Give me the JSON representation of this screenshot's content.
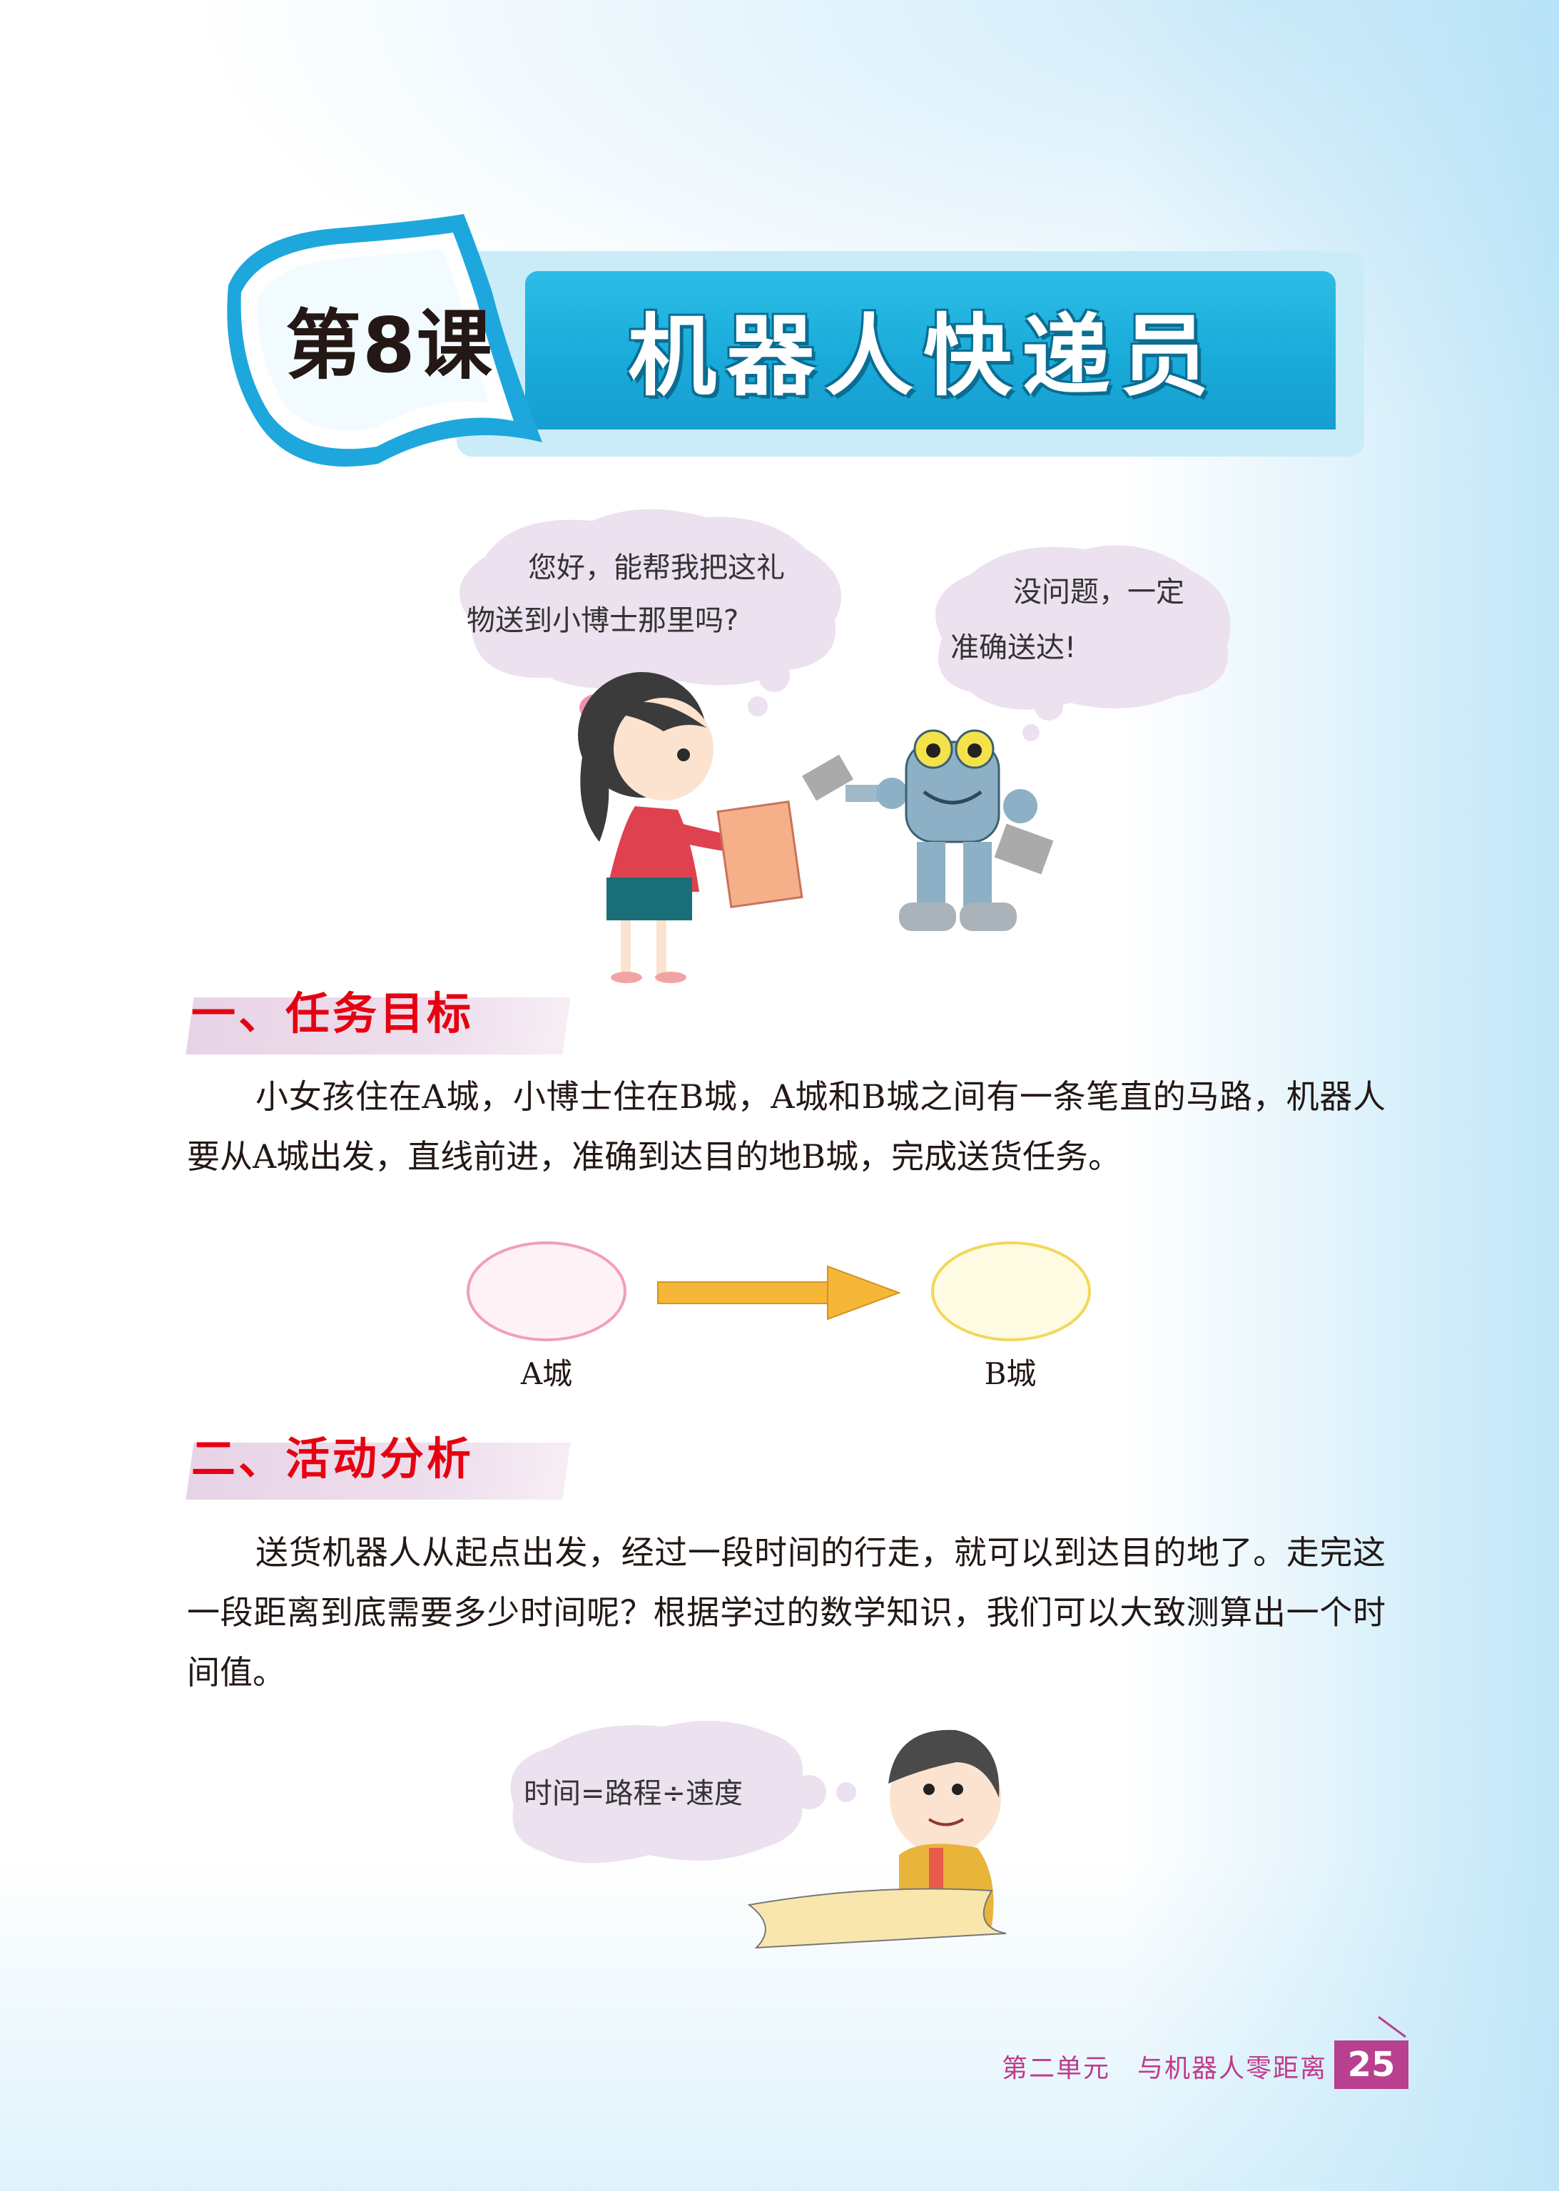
{
  "lesson": {
    "number_label": "第8课",
    "title": "机器人快递员"
  },
  "dialogue": {
    "girl_line1": "您好，能帮我把这礼",
    "girl_line2": "物送到小博士那里吗?",
    "robot_line1": "没问题，一定",
    "robot_line2": "准确送达!"
  },
  "sections": [
    {
      "title": "一、任务目标",
      "paragraph": "小女孩住在A城，小博士住在B城，A城和B城之间有一条笔直的马路，机器人要从A城出发，直线前进，准确到达目的地B城，完成送货任务。"
    },
    {
      "title": "二、活动分析",
      "paragraph": "送货机器人从起点出发，经过一段时间的行走，就可以到达目的地了。走完这一段距离到底需要多少时间呢？根据学过的数学知识，我们可以大致测算出一个时间值。"
    }
  ],
  "route": {
    "start_label": "A城",
    "end_label": "B城"
  },
  "formula": "时间=路程÷速度",
  "footer": {
    "unit_text": "第二单元　与机器人零距离",
    "page_number": "25"
  },
  "colors": {
    "banner_blue": "#19a9d9",
    "section_red": "#e60012",
    "footer_magenta": "#b93f8f",
    "arrow_gold": "#f6b637"
  }
}
